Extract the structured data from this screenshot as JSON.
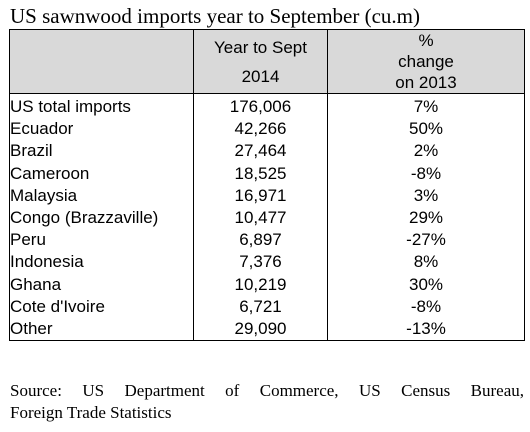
{
  "title": "US sawnwood imports year to September (cu.m)",
  "table": {
    "headers": {
      "country": "",
      "value_line1": "Year to Sept",
      "value_line2": "2014",
      "change_line1": "%",
      "change_line2": "change",
      "change_line3": "on 2013"
    },
    "rows": [
      {
        "country": "US total imports",
        "value": "176,006",
        "change": "7%"
      },
      {
        "country": "Ecuador",
        "value": "42,266",
        "change": "50%"
      },
      {
        "country": "Brazil",
        "value": "27,464",
        "change": "2%"
      },
      {
        "country": "Cameroon",
        "value": "18,525",
        "change": "-8%"
      },
      {
        "country": "Malaysia",
        "value": "16,971",
        "change": "3%"
      },
      {
        "country": "Congo (Brazzaville)",
        "value": "10,477",
        "change": "29%"
      },
      {
        "country": "Peru",
        "value": "6,897",
        "change": "-27%"
      },
      {
        "country": "Indonesia",
        "value": "7,376",
        "change": "8%"
      },
      {
        "country": "Ghana",
        "value": "10,219",
        "change": "30%"
      },
      {
        "country": "Cote d'Ivoire",
        "value": "6,721",
        "change": "-8%"
      },
      {
        "country": "Other",
        "value": "29,090",
        "change": "-13%"
      }
    ]
  },
  "source": {
    "line1": "Source: US Department of Commerce, US Census Bureau,",
    "line2": "Foreign Trade Statistics"
  }
}
